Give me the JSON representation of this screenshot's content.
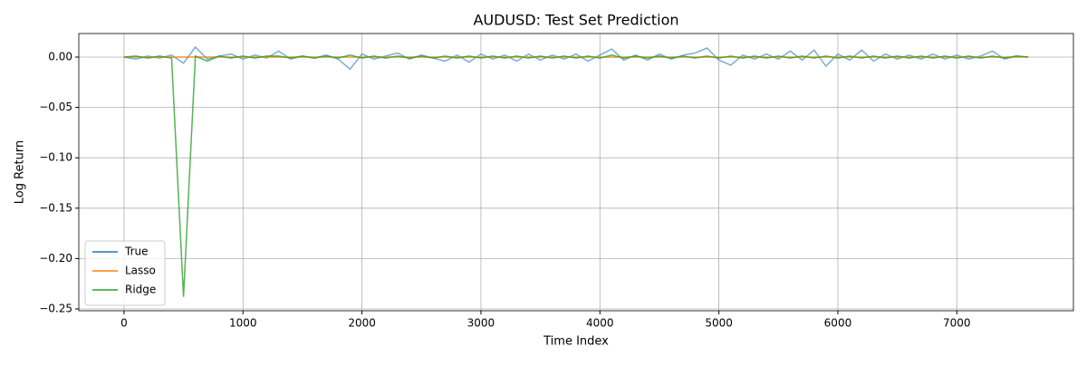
{
  "chart_data": {
    "type": "line",
    "title": "AUDUSD: Test Set Prediction",
    "x_label": "Time Index",
    "y_label": "Log Return",
    "x": [
      0,
      100,
      200,
      300,
      400,
      500,
      600,
      700,
      800,
      900,
      1000,
      1100,
      1200,
      1300,
      1400,
      1500,
      1600,
      1700,
      1800,
      1900,
      2000,
      2100,
      2200,
      2300,
      2400,
      2500,
      2600,
      2700,
      2800,
      2900,
      3000,
      3100,
      3200,
      3300,
      3400,
      3500,
      3600,
      3700,
      3800,
      3900,
      4000,
      4100,
      4200,
      4300,
      4400,
      4500,
      4600,
      4700,
      4800,
      4900,
      5000,
      5100,
      5200,
      5300,
      5400,
      5500,
      5600,
      5700,
      5800,
      5900,
      6000,
      6100,
      6200,
      6300,
      6400,
      6500,
      6600,
      6700,
      6800,
      6900,
      7000,
      7100,
      7200,
      7300,
      7400,
      7500,
      7600
    ],
    "series": [
      {
        "name": "True",
        "color": "#1f77b4",
        "values": [
          0,
          -0.002,
          0.001,
          -0.001,
          0.002,
          -0.006,
          0.01,
          -0.002,
          0.001,
          0.003,
          -0.002,
          0.002,
          -0.001,
          0.006,
          -0.002,
          0.001,
          -0.001,
          0.002,
          -0.002,
          -0.012,
          0.003,
          -0.002,
          0.001,
          0.004,
          -0.002,
          0.002,
          -0.001,
          -0.004,
          0.002,
          -0.005,
          0.003,
          -0.002,
          0.002,
          -0.004,
          0.003,
          -0.003,
          0.002,
          -0.002,
          0.003,
          -0.004,
          0.002,
          0.008,
          -0.003,
          0.002,
          -0.003,
          0.003,
          -0.002,
          0.002,
          0.004,
          0.009,
          -0.003,
          -0.008,
          0.002,
          -0.002,
          0.003,
          -0.002,
          0.006,
          -0.003,
          0.007,
          -0.009,
          0.003,
          -0.003,
          0.007,
          -0.004,
          0.003,
          -0.002,
          0.002,
          -0.002,
          0.003,
          -0.002,
          0.002,
          -0.002,
          0.001,
          0.006,
          -0.002,
          0.001,
          0
        ]
      },
      {
        "name": "Lasso",
        "color": "#ff7f0e",
        "values": [
          0,
          0,
          0,
          0,
          0,
          0,
          0,
          0,
          0,
          0,
          0,
          0,
          0,
          0,
          0,
          0,
          0,
          0,
          0,
          0,
          0,
          0,
          0,
          0,
          0,
          0,
          0,
          0,
          0,
          0,
          0,
          0,
          0,
          0,
          0,
          0,
          0,
          0,
          0,
          0,
          0,
          0,
          0,
          0,
          0,
          0,
          0,
          0,
          0,
          0,
          0,
          0,
          0,
          0,
          0,
          0,
          0,
          0,
          0,
          0,
          0,
          0,
          0,
          0,
          0,
          0,
          0,
          0,
          0,
          0,
          0,
          0,
          0,
          0,
          0,
          0,
          0
        ]
      },
      {
        "name": "Ridge",
        "color": "#2ca02c",
        "values": [
          0,
          0.001,
          -0.001,
          0.001,
          -0.001,
          -0.238,
          0.001,
          -0.004,
          0.001,
          -0.001,
          0.001,
          -0.001,
          0.001,
          0.001,
          -0.001,
          0.001,
          -0.001,
          0.001,
          -0.001,
          0.002,
          -0.001,
          0.001,
          -0.001,
          0.001,
          -0.001,
          0.001,
          -0.001,
          0.001,
          -0.001,
          0.001,
          -0.001,
          0.001,
          -0.001,
          0.001,
          -0.001,
          0.001,
          -0.001,
          0.001,
          -0.001,
          0.001,
          -0.001,
          0.002,
          -0.001,
          0.001,
          -0.001,
          0.001,
          -0.001,
          0.001,
          -0.001,
          0.001,
          -0.001,
          0.001,
          -0.001,
          0.001,
          -0.001,
          0.001,
          -0.001,
          0.001,
          -0.001,
          0.001,
          -0.001,
          0.001,
          -0.001,
          0.001,
          -0.001,
          0.001,
          -0.001,
          0.001,
          -0.001,
          0.001,
          -0.001,
          0.001,
          -0.001,
          0.001,
          -0.001,
          0.001,
          0
        ]
      }
    ],
    "xlim": [
      -380,
      7980
    ],
    "ylim": [
      -0.2518,
      0.0234
    ],
    "xticks": [
      0,
      1000,
      2000,
      3000,
      4000,
      5000,
      6000,
      7000
    ],
    "yticks": [
      {
        "value": 0,
        "label": "0.00"
      },
      {
        "value": -0.05,
        "label": "−0.05"
      },
      {
        "value": -0.1,
        "label": "−0.10"
      },
      {
        "value": -0.15,
        "label": "−0.15"
      },
      {
        "value": -0.2,
        "label": "−0.20"
      },
      {
        "value": -0.25,
        "label": "−0.25"
      }
    ],
    "grid": true,
    "legend": "lower left"
  }
}
